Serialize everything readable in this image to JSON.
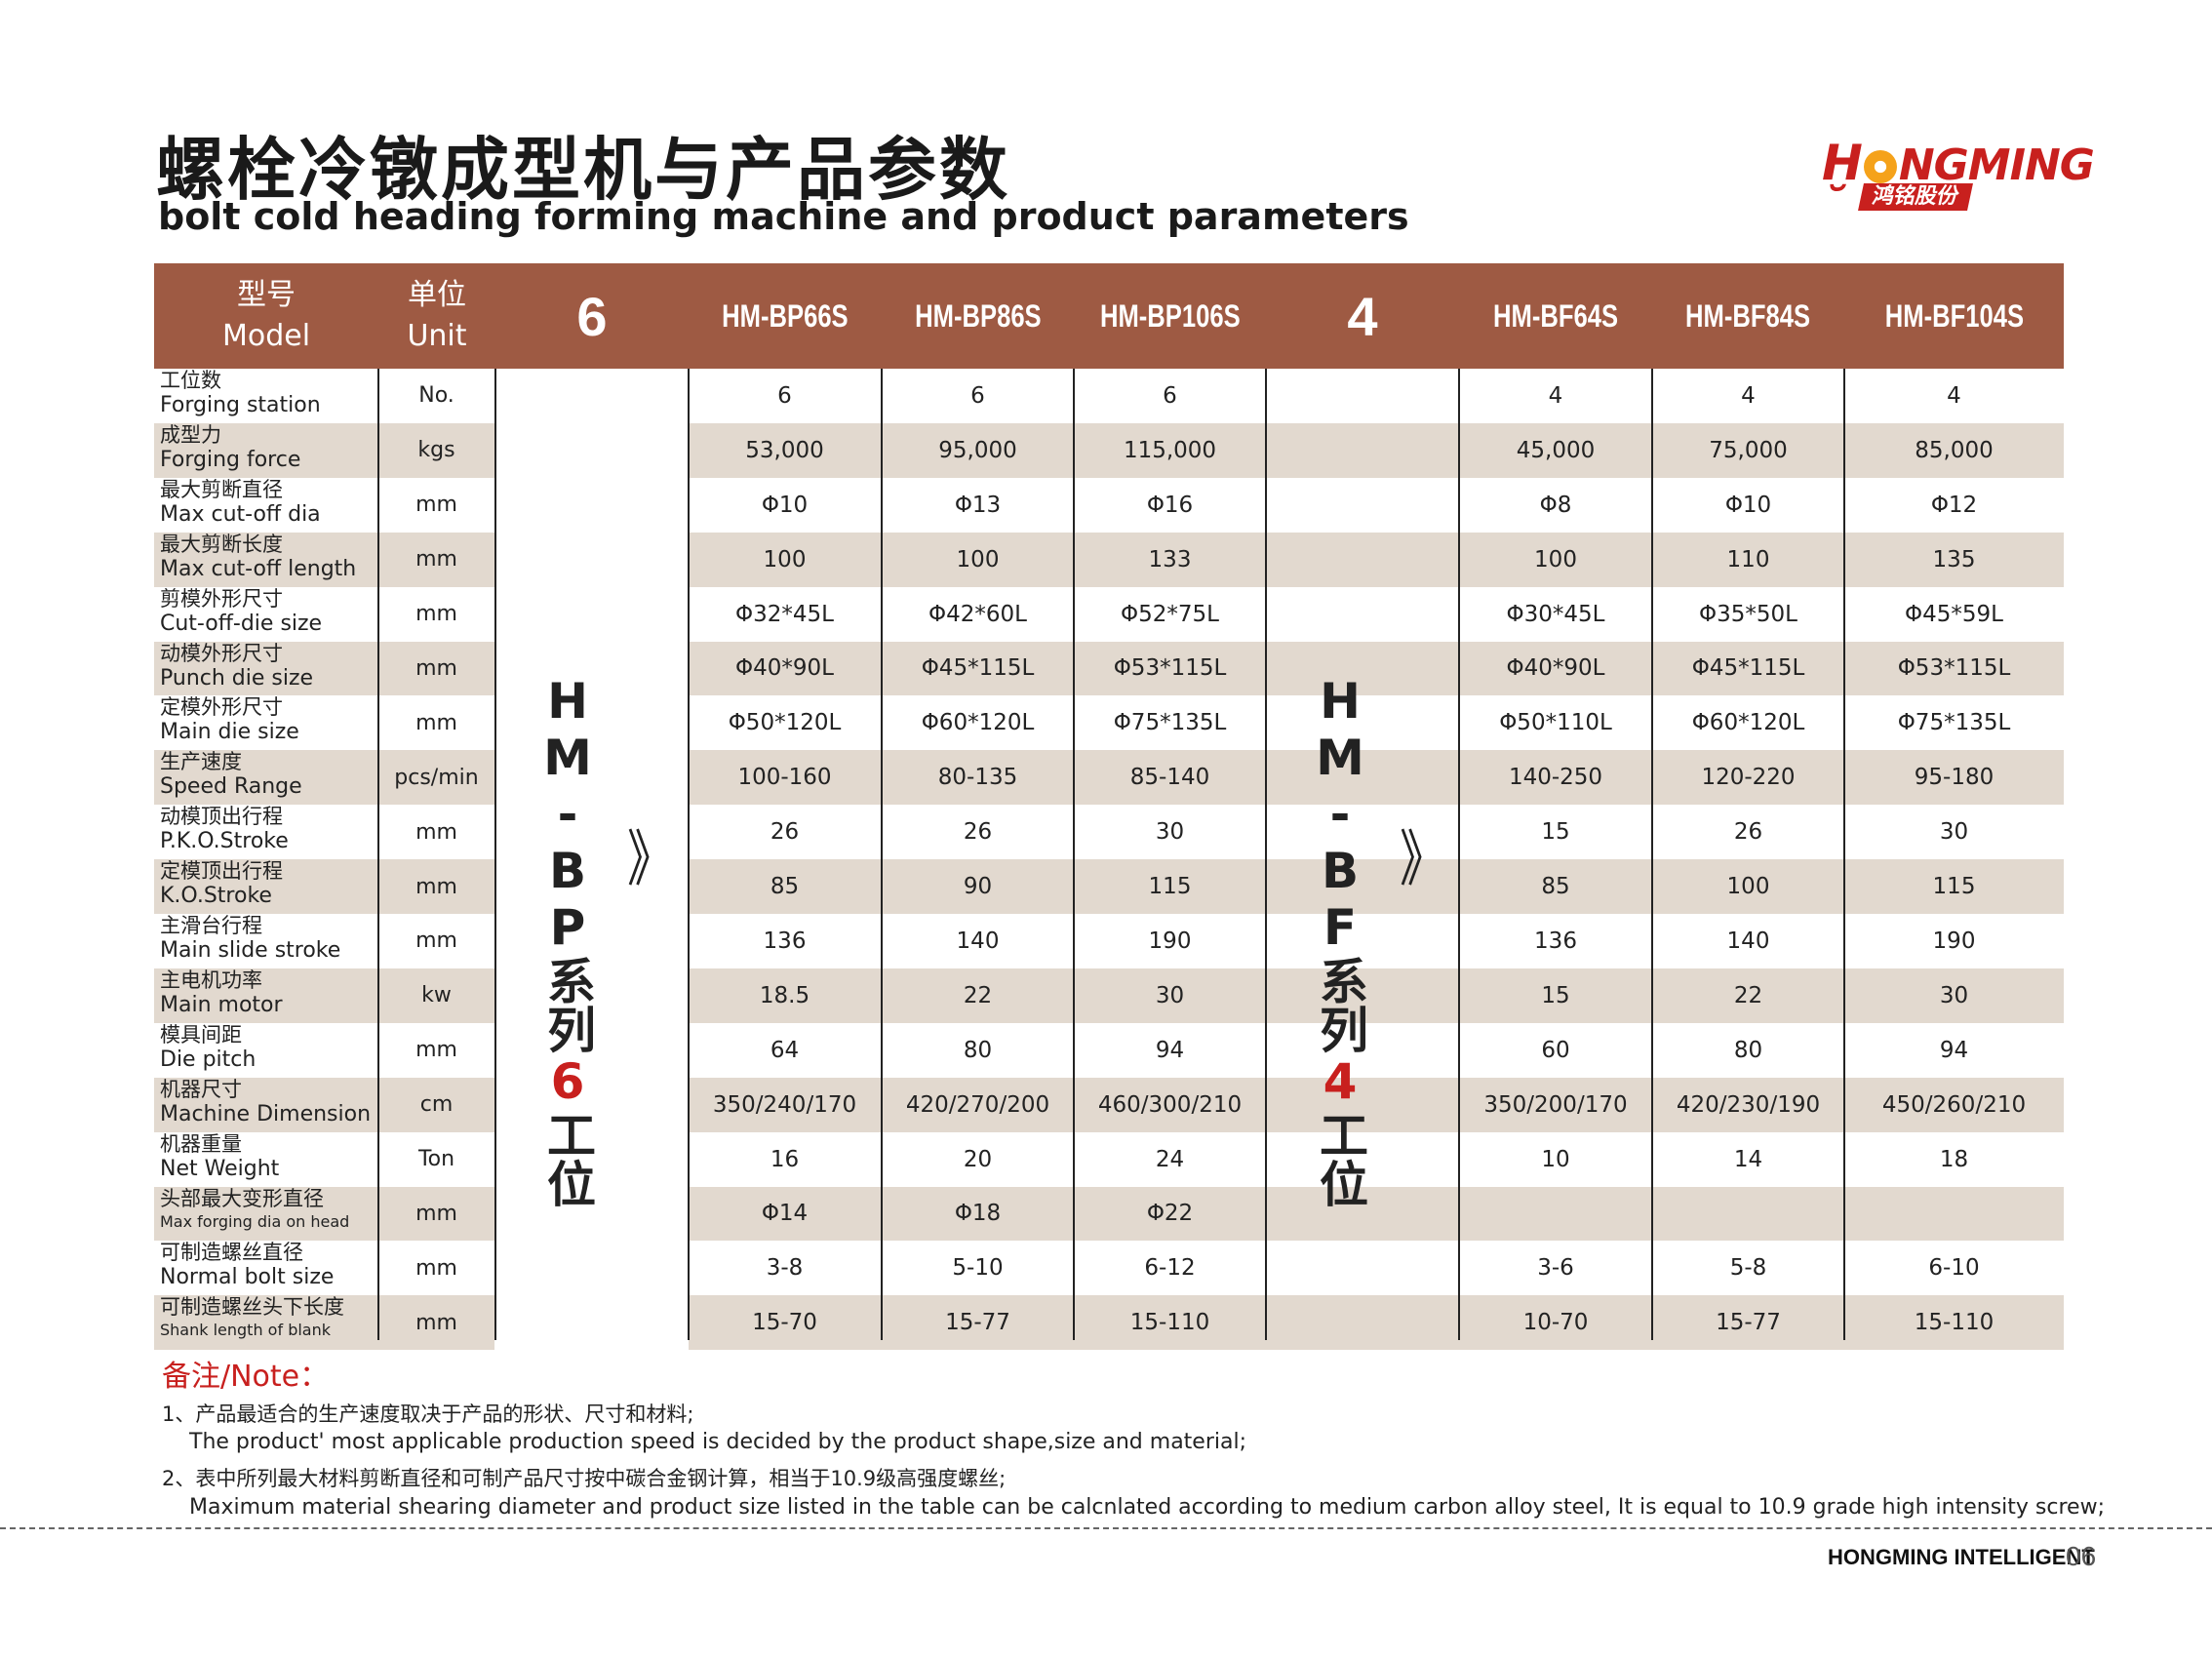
{
  "title": {
    "cn": "螺栓冷镦成型机与产品参数",
    "en": "bolt cold heading forming machine and product parameters"
  },
  "logo": {
    "top": "NGMING",
    "bottom": "鸿铭股份",
    "brand_color": "#c8201e",
    "gear_color": "#f5a21a"
  },
  "header": {
    "model_cn": "型号",
    "model_en": "Model",
    "unit_cn": "单位",
    "unit_en": "Unit",
    "bp_count": "6",
    "bp_models": [
      "HM-BP66S",
      "HM-BP86S",
      "HM-BP106S"
    ],
    "bf_count": "4",
    "bf_models": [
      "HM-BF64S",
      "HM-BF84S",
      "HM-BF104S"
    ],
    "color": "#9e5a43"
  },
  "series": {
    "bp_prefix": "HM-BP系列",
    "bp_num": "6",
    "bp_suffix": "工位",
    "bf_prefix": "HM-BF系列",
    "bf_num": "4",
    "bf_suffix": "工位",
    "arrow": "》"
  },
  "rows": [
    {
      "cn": "工位数",
      "en": "Forging station",
      "unit": "No.",
      "bp": [
        "6",
        "6",
        "6"
      ],
      "bf": [
        "4",
        "4",
        "4"
      ]
    },
    {
      "cn": "成型力",
      "en": "Forging force",
      "unit": "kgs",
      "bp": [
        "53,000",
        "95,000",
        "115,000"
      ],
      "bf": [
        "45,000",
        "75,000",
        "85,000"
      ]
    },
    {
      "cn": "最大剪断直径",
      "en": "Max cut-off dia",
      "unit": "mm",
      "bp": [
        "Φ10",
        "Φ13",
        "Φ16"
      ],
      "bf": [
        "Φ8",
        "Φ10",
        "Φ12"
      ]
    },
    {
      "cn": "最大剪断长度",
      "en": "Max cut-off length",
      "unit": "mm",
      "bp": [
        "100",
        "100",
        "133"
      ],
      "bf": [
        "100",
        "110",
        "135"
      ]
    },
    {
      "cn": "剪模外形尺寸",
      "en": "Cut-off-die size",
      "unit": "mm",
      "bp": [
        "Φ32*45L",
        "Φ42*60L",
        "Φ52*75L"
      ],
      "bf": [
        "Φ30*45L",
        "Φ35*50L",
        "Φ45*59L"
      ]
    },
    {
      "cn": "动模外形尺寸",
      "en": "Punch die size",
      "unit": "mm",
      "bp": [
        "Φ40*90L",
        "Φ45*115L",
        "Φ53*115L"
      ],
      "bf": [
        "Φ40*90L",
        "Φ45*115L",
        "Φ53*115L"
      ]
    },
    {
      "cn": "定模外形尺寸",
      "en": "Main die size",
      "unit": "mm",
      "bp": [
        "Φ50*120L",
        "Φ60*120L",
        "Φ75*135L"
      ],
      "bf": [
        "Φ50*110L",
        "Φ60*120L",
        "Φ75*135L"
      ]
    },
    {
      "cn": "生产速度",
      "en": "Speed Range",
      "unit": "pcs/min",
      "bp": [
        "100-160",
        "80-135",
        "85-140"
      ],
      "bf": [
        "140-250",
        "120-220",
        "95-180"
      ]
    },
    {
      "cn": "动模顶出行程",
      "en": "P.K.O.Stroke",
      "unit": "mm",
      "bp": [
        "26",
        "26",
        "30"
      ],
      "bf": [
        "15",
        "26",
        "30"
      ]
    },
    {
      "cn": "定模顶出行程",
      "en": "K.O.Stroke",
      "unit": "mm",
      "bp": [
        "85",
        "90",
        "115"
      ],
      "bf": [
        "85",
        "100",
        "115"
      ]
    },
    {
      "cn": "主滑台行程",
      "en": "Main slide stroke",
      "unit": "mm",
      "bp": [
        "136",
        "140",
        "190"
      ],
      "bf": [
        "136",
        "140",
        "190"
      ]
    },
    {
      "cn": "主电机功率",
      "en": "Main motor",
      "unit": "kw",
      "bp": [
        "18.5",
        "22",
        "30"
      ],
      "bf": [
        "15",
        "22",
        "30"
      ]
    },
    {
      "cn": "模具间距",
      "en": "Die pitch",
      "unit": "mm",
      "bp": [
        "64",
        "80",
        "94"
      ],
      "bf": [
        "60",
        "80",
        "94"
      ]
    },
    {
      "cn": "机器尺寸",
      "en": "Machine Dimension",
      "unit": "cm",
      "bp": [
        "350/240/170",
        "420/270/200",
        "460/300/210"
      ],
      "bf": [
        "350/200/170",
        "420/230/190",
        "450/260/210"
      ]
    },
    {
      "cn": "机器重量",
      "en": "Net Weight",
      "unit": "Ton",
      "bp": [
        "16",
        "20",
        "24"
      ],
      "bf": [
        "10",
        "14",
        "18"
      ]
    },
    {
      "cn": "头部最大变形直径",
      "en": "Max forging dia on head",
      "unit": "mm",
      "bp": [
        "Φ14",
        "Φ18",
        "Φ22"
      ],
      "bf": [
        "",
        "",
        ""
      ]
    },
    {
      "cn": "可制造螺丝直径",
      "en": "Normal bolt size",
      "unit": "mm",
      "bp": [
        "3-8",
        "5-10",
        "6-12"
      ],
      "bf": [
        "3-6",
        "5-8",
        "6-10"
      ]
    },
    {
      "cn": "可制造螺丝头下长度",
      "en": "Shank length of blank",
      "unit": "mm",
      "bp": [
        "15-70",
        "15-77",
        "15-110"
      ],
      "bf": [
        "10-70",
        "15-77",
        "15-110"
      ]
    }
  ],
  "notes": {
    "title": "备注/Note：",
    "n1_cn": "1、产品最适合的生产速度取决于产品的形状、尺寸和材料;",
    "n1_en": "The product' most applicable production speed is decided by the product shape,size and material;",
    "n2_cn": "2、表中所列最大材料剪断直径和可制产品尺寸按中碳合金钢计算，相当于10.9级高强度螺丝;",
    "n2_en": "Maximum material shearing diameter and product size listed in the table can be calcnlated according to medium carbon alloy steel, It is equal to 10.9 grade high intensity screw;"
  },
  "footer": {
    "company": "HONGMING INTELLIGENT",
    "page": "06"
  }
}
